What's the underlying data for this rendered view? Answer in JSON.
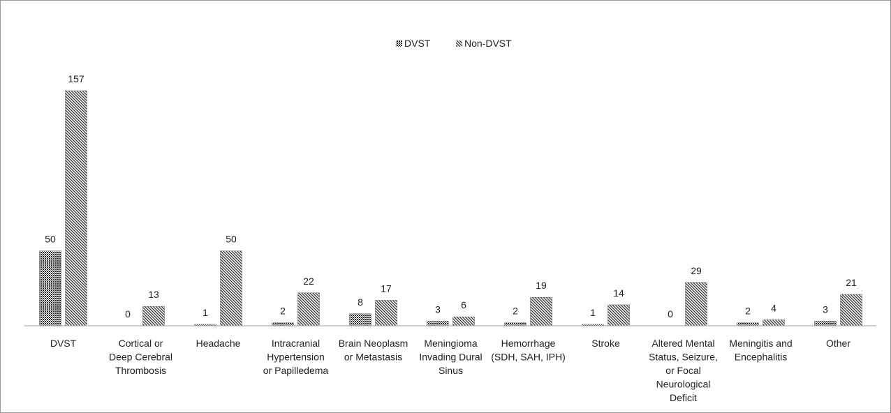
{
  "chart_data": {
    "type": "bar",
    "categories": [
      "DVST",
      "Cortical or Deep Cerebral Thrombosis",
      "Headache",
      "Intracranial Hypertension or Papilledema",
      "Brain Neoplasm or Metastasis",
      "Meningioma Invading Dural Sinus",
      "Hemorrhage (SDH, SAH, IPH)",
      "Stroke",
      "Altered Mental Status, Seizure, or Focal Neurological Deficit",
      "Meningitis and Encephalitis",
      "Other"
    ],
    "category_label_lines": [
      [
        "DVST"
      ],
      [
        "Cortical or",
        "Deep Cerebral",
        "Thrombosis"
      ],
      [
        "Headache"
      ],
      [
        "Intracranial",
        "Hypertension",
        "or Papilledema"
      ],
      [
        "Brain Neoplasm",
        "or Metastasis"
      ],
      [
        "Meningioma",
        "Invading Dural",
        "Sinus"
      ],
      [
        "Hemorrhage",
        "(SDH, SAH, IPH)"
      ],
      [
        "Stroke"
      ],
      [
        "Altered Mental",
        "Status, Seizure,",
        "or Focal",
        "Neurological",
        "Deficit"
      ],
      [
        "Meningitis and",
        "Encephalitis"
      ],
      [
        "Other"
      ]
    ],
    "series": [
      {
        "name": "DVST",
        "values": [
          50,
          0,
          1,
          2,
          8,
          3,
          2,
          1,
          0,
          2,
          3
        ],
        "color": "#333333"
      },
      {
        "name": "Non-DVST",
        "values": [
          157,
          13,
          50,
          22,
          17,
          6,
          19,
          14,
          29,
          4,
          21
        ],
        "color": "#333333"
      }
    ],
    "ylim": [
      0,
      160
    ],
    "grid": false,
    "data_labels": true,
    "legend": {
      "position": "top-center",
      "entries": [
        "DVST",
        "Non-DVST"
      ]
    }
  }
}
